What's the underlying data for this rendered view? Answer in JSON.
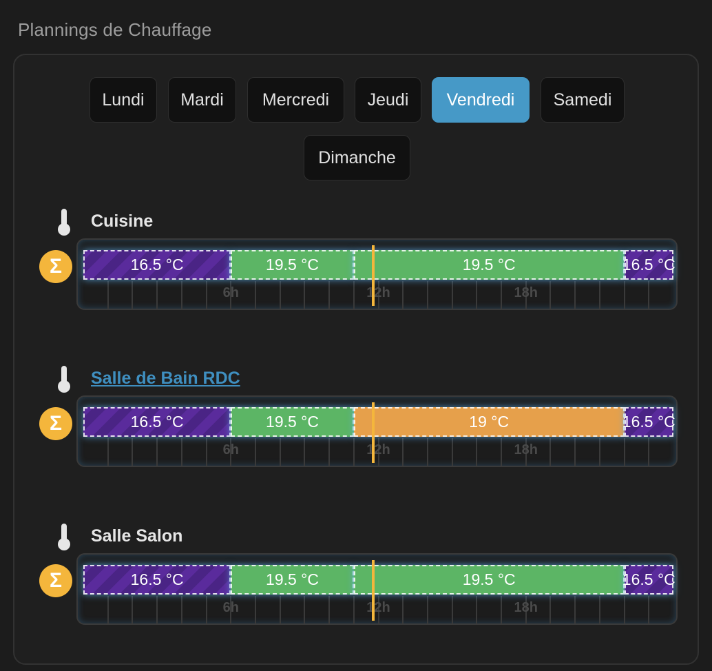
{
  "section_title": "Plannings de Chauffage",
  "days": [
    "Lundi",
    "Mardi",
    "Mercredi",
    "Jeudi",
    "Vendredi",
    "Samedi",
    "Dimanche"
  ],
  "active_day": "Vendredi",
  "hour_labels": [
    "6h",
    "12h",
    "18h"
  ],
  "now_hours": 11.8,
  "colors": {
    "eco": "#5a2b9c",
    "comfort": "#5cb565",
    "mid": "#e6a04b",
    "accent": "#4699c7",
    "sigma": "#f4b63c"
  },
  "rooms": [
    {
      "name": "Cuisine",
      "is_link": false,
      "segments": [
        {
          "start": 0,
          "end": 6,
          "label": "16.5 °C",
          "mode": "eco"
        },
        {
          "start": 6,
          "end": 11,
          "label": "19.5 °C",
          "mode": "comfort"
        },
        {
          "start": 11,
          "end": 22,
          "label": "19.5 °C",
          "mode": "comfort"
        },
        {
          "start": 22,
          "end": 24,
          "label": "16.5 °C",
          "mode": "eco"
        }
      ]
    },
    {
      "name": "Salle de Bain RDC",
      "is_link": true,
      "segments": [
        {
          "start": 0,
          "end": 6,
          "label": "16.5 °C",
          "mode": "eco"
        },
        {
          "start": 6,
          "end": 11,
          "label": "19.5 °C",
          "mode": "comfort"
        },
        {
          "start": 11,
          "end": 22,
          "label": "19 °C",
          "mode": "mid"
        },
        {
          "start": 22,
          "end": 24,
          "label": "16.5 °C",
          "mode": "eco"
        }
      ]
    },
    {
      "name": "Salle Salon",
      "is_link": false,
      "segments": [
        {
          "start": 0,
          "end": 6,
          "label": "16.5 °C",
          "mode": "eco"
        },
        {
          "start": 6,
          "end": 11,
          "label": "19.5 °C",
          "mode": "comfort"
        },
        {
          "start": 11,
          "end": 22,
          "label": "19.5 °C",
          "mode": "comfort"
        },
        {
          "start": 22,
          "end": 24,
          "label": "16.5 °C",
          "mode": "eco"
        }
      ]
    }
  ]
}
